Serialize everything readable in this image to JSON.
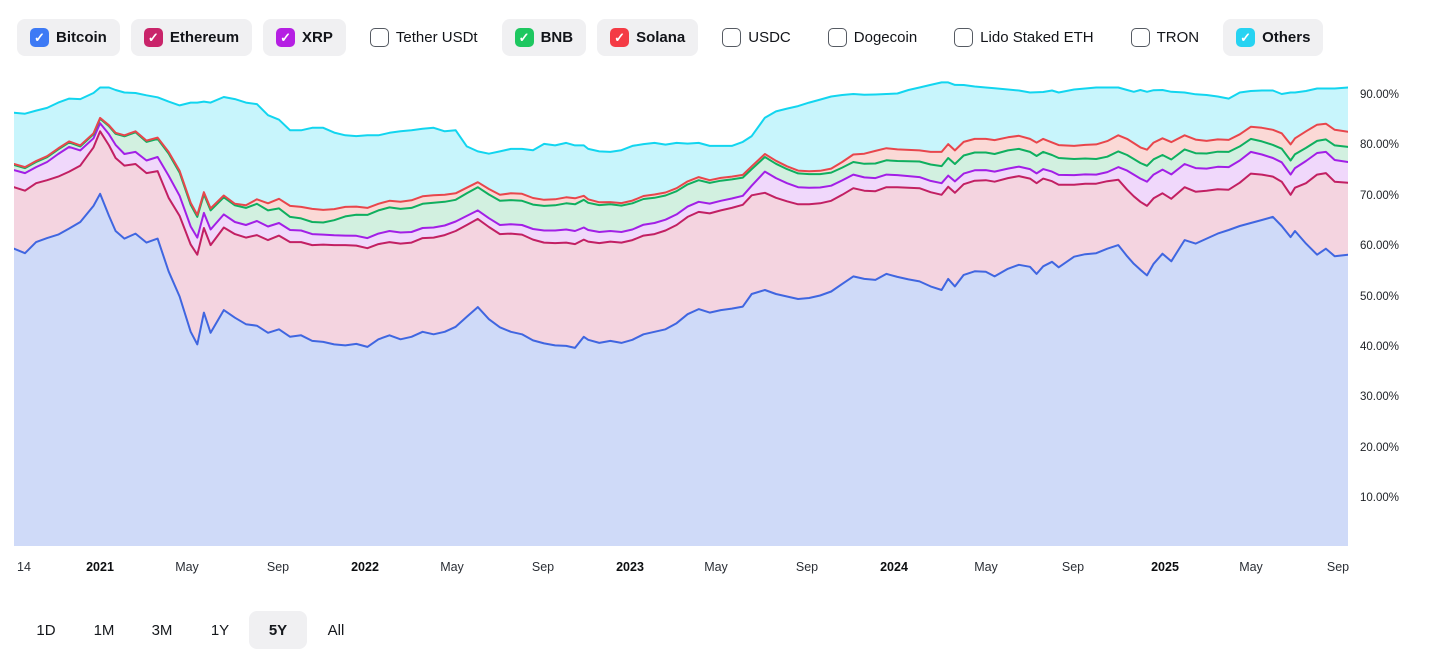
{
  "legend": {
    "items": [
      {
        "label": "Bitcoin",
        "checked": true,
        "color": "#3D7AF5"
      },
      {
        "label": "Ethereum",
        "checked": true,
        "color": "#C9246A"
      },
      {
        "label": "XRP",
        "checked": true,
        "color": "#B51FE3"
      },
      {
        "label": "Tether USDt",
        "checked": false,
        "color": null
      },
      {
        "label": "BNB",
        "checked": true,
        "color": "#1EC760"
      },
      {
        "label": "Solana",
        "checked": true,
        "color": "#F43B45"
      },
      {
        "label": "USDC",
        "checked": false,
        "color": null
      },
      {
        "label": "Dogecoin",
        "checked": false,
        "color": null
      },
      {
        "label": "Lido Staked ETH",
        "checked": false,
        "color": null
      },
      {
        "label": "TRON",
        "checked": false,
        "color": null
      },
      {
        "label": "Others",
        "checked": true,
        "color": "#26D3F2"
      }
    ]
  },
  "chart_data": {
    "type": "area",
    "stacked": true,
    "title": "Crypto market dominance share, stacked area of checked assets",
    "unit": "%",
    "ylim": [
      0,
      94.5
    ],
    "grid": false,
    "legend_position": "top",
    "x_range": {
      "start_label": "14 (Sep 2020)",
      "end_label": "Sep 2025",
      "t_max_months": 60.4
    },
    "y_ticks": [
      {
        "label": "90.00%",
        "pct": 90
      },
      {
        "label": "80.00%",
        "pct": 80
      },
      {
        "label": "70.00%",
        "pct": 70
      },
      {
        "label": "60.00%",
        "pct": 60
      },
      {
        "label": "50.00%",
        "pct": 50
      },
      {
        "label": "40.00%",
        "pct": 40
      },
      {
        "label": "30.00%",
        "pct": 30
      },
      {
        "label": "20.00%",
        "pct": 20
      },
      {
        "label": "10.00%",
        "pct": 10
      }
    ],
    "x_ticks": [
      {
        "label": "14",
        "x": 24,
        "bold": false
      },
      {
        "label": "2021",
        "x": 100,
        "bold": true
      },
      {
        "label": "May",
        "x": 187,
        "bold": false
      },
      {
        "label": "Sep",
        "x": 278,
        "bold": false
      },
      {
        "label": "2022",
        "x": 365,
        "bold": true
      },
      {
        "label": "May",
        "x": 452,
        "bold": false
      },
      {
        "label": "Sep",
        "x": 543,
        "bold": false
      },
      {
        "label": "2023",
        "x": 630,
        "bold": true
      },
      {
        "label": "May",
        "x": 716,
        "bold": false
      },
      {
        "label": "Sep",
        "x": 807,
        "bold": false
      },
      {
        "label": "2024",
        "x": 894,
        "bold": true
      },
      {
        "label": "May",
        "x": 986,
        "bold": false
      },
      {
        "label": "Sep",
        "x": 1073,
        "bold": false
      },
      {
        "label": "2025",
        "x": 1165,
        "bold": true
      },
      {
        "label": "May",
        "x": 1251,
        "bold": false
      },
      {
        "label": "Sep",
        "x": 1338,
        "bold": false
      }
    ],
    "series": [
      {
        "name": "Bitcoin",
        "line": "#4066E0",
        "fill": "#CFDAF8"
      },
      {
        "name": "Ethereum",
        "line": "#C22063",
        "fill": "#F4D4E0"
      },
      {
        "name": "XRP",
        "line": "#A21FE6",
        "fill": "#F0D8FB"
      },
      {
        "name": "BNB",
        "line": "#0FAF5F",
        "fill": "#D2F0E0"
      },
      {
        "name": "Solana",
        "line": "#E8464C",
        "fill": "#FBD9D6"
      },
      {
        "name": "Others",
        "line": "#12D5EF",
        "fill": "#C8F5FC"
      }
    ],
    "points_format": [
      "t_months_from_start",
      "Bitcoin",
      "Ethereum",
      "XRP",
      "BNB",
      "Solana",
      "Others"
    ],
    "points": [
      [
        0,
        59.5,
        12.2,
        3.4,
        1.0,
        0.2,
        10.2
      ],
      [
        0.5,
        58.6,
        12.4,
        3.5,
        1.0,
        0.2,
        10.6
      ],
      [
        1,
        60.8,
        11.7,
        3.2,
        1.0,
        0.2,
        10.0
      ],
      [
        1.5,
        61.6,
        11.5,
        3.6,
        0.95,
        0.2,
        9.6
      ],
      [
        2,
        62.3,
        11.5,
        4.5,
        0.9,
        0.2,
        9.1
      ],
      [
        2.5,
        63.5,
        11.3,
        4.9,
        0.9,
        0.2,
        8.5
      ],
      [
        3,
        64.8,
        11.2,
        3.0,
        0.8,
        0.2,
        9.2
      ],
      [
        3.6,
        68.0,
        11.6,
        1.8,
        0.8,
        0.2,
        8.0
      ],
      [
        3.9,
        70.4,
        12.4,
        1.6,
        0.9,
        0.15,
        6.05
      ],
      [
        4.3,
        66.0,
        14.0,
        2.2,
        1.6,
        0.2,
        7.5
      ],
      [
        4.6,
        63.0,
        14.5,
        2.6,
        2.2,
        0.2,
        8.5
      ],
      [
        5,
        61.5,
        14.5,
        2.3,
        3.5,
        0.2,
        8.5
      ],
      [
        5.5,
        62.5,
        13.8,
        2.4,
        3.9,
        0.2,
        7.6
      ],
      [
        6,
        60.7,
        13.8,
        2.5,
        3.7,
        0.25,
        9.0
      ],
      [
        6.5,
        61.5,
        13.4,
        2.8,
        3.6,
        0.25,
        8.0
      ],
      [
        7,
        55.0,
        14.6,
        4.4,
        4.4,
        0.3,
        10.0
      ],
      [
        7.5,
        50.0,
        16.0,
        4.0,
        4.6,
        0.35,
        13.0
      ],
      [
        8,
        43.0,
        17.3,
        3.6,
        4.3,
        0.4,
        19.9
      ],
      [
        8.3,
        40.5,
        17.8,
        3.4,
        4.1,
        0.4,
        22.3
      ],
      [
        8.6,
        46.8,
        16.8,
        3.0,
        3.7,
        0.4,
        18.0
      ],
      [
        8.9,
        42.8,
        17.4,
        3.1,
        3.8,
        0.4,
        21.0
      ],
      [
        9.5,
        47.3,
        16.4,
        2.6,
        3.4,
        0.35,
        19.55
      ],
      [
        10,
        45.8,
        16.6,
        2.4,
        3.3,
        0.3,
        20.8
      ],
      [
        10.5,
        44.5,
        17.2,
        2.5,
        3.4,
        0.5,
        20.4
      ],
      [
        11,
        44.2,
        18.0,
        2.8,
        3.4,
        0.9,
        18.9
      ],
      [
        11.5,
        42.8,
        18.4,
        2.7,
        3.2,
        1.4,
        17.5
      ],
      [
        12,
        43.5,
        18.6,
        2.5,
        2.9,
        1.9,
        15.7
      ],
      [
        12.5,
        42.0,
        18.8,
        2.4,
        2.6,
        2.2,
        15.0
      ],
      [
        13,
        42.3,
        18.5,
        2.3,
        2.4,
        2.3,
        15.2
      ],
      [
        13.5,
        41.2,
        19.0,
        2.2,
        2.4,
        2.6,
        16.1
      ],
      [
        14,
        41.0,
        19.3,
        2.0,
        2.4,
        2.5,
        16.3
      ],
      [
        14.5,
        40.5,
        19.7,
        1.95,
        3.0,
        2.2,
        15.2
      ],
      [
        15,
        40.3,
        19.9,
        1.9,
        3.8,
        1.9,
        14.2
      ],
      [
        15.5,
        40.6,
        19.5,
        1.95,
        4.2,
        1.6,
        14.0
      ],
      [
        16,
        40.0,
        19.6,
        2.0,
        4.6,
        1.4,
        14.4
      ],
      [
        16.5,
        41.5,
        18.9,
        2.1,
        4.6,
        1.3,
        13.6
      ],
      [
        17,
        42.3,
        18.5,
        2.2,
        4.7,
        1.3,
        13.5
      ],
      [
        17.5,
        41.5,
        19.0,
        2.2,
        4.7,
        1.4,
        14.0
      ],
      [
        18,
        42.0,
        18.7,
        2.1,
        4.8,
        1.5,
        13.9
      ],
      [
        18.5,
        43.0,
        18.6,
        2.0,
        4.8,
        1.5,
        13.4
      ],
      [
        19,
        42.5,
        19.2,
        2.0,
        4.9,
        1.5,
        13.4
      ],
      [
        19.5,
        43.0,
        19.2,
        1.9,
        4.7,
        1.4,
        12.6
      ],
      [
        20,
        44.0,
        19.0,
        1.9,
        4.3,
        1.3,
        12.5
      ],
      [
        20.5,
        46.0,
        18.2,
        1.8,
        4.5,
        1.1,
        8.2
      ],
      [
        21,
        47.9,
        17.5,
        1.7,
        4.6,
        1.0,
        6.1
      ],
      [
        21.5,
        45.5,
        18.3,
        1.75,
        4.7,
        1.1,
        7.0
      ],
      [
        22,
        43.9,
        18.5,
        1.8,
        4.8,
        1.2,
        8.6
      ],
      [
        22.5,
        43.0,
        19.5,
        1.85,
        4.8,
        1.35,
        8.8
      ],
      [
        23,
        42.5,
        19.8,
        1.9,
        4.8,
        1.4,
        8.9
      ],
      [
        23.5,
        41.3,
        20.0,
        2.1,
        4.85,
        1.3,
        9.5
      ],
      [
        24,
        40.7,
        20.0,
        2.4,
        4.9,
        1.2,
        11.1
      ],
      [
        24.5,
        40.3,
        20.3,
        2.5,
        5.0,
        1.2,
        10.7
      ],
      [
        25,
        40.2,
        20.5,
        2.6,
        5.2,
        1.2,
        10.8
      ],
      [
        25.4,
        39.8,
        20.6,
        2.6,
        5.3,
        1.2,
        10.5
      ],
      [
        25.8,
        42.0,
        19.3,
        2.4,
        5.5,
        0.8,
        10.0
      ],
      [
        26,
        41.4,
        19.5,
        2.3,
        5.4,
        0.7,
        10.0
      ],
      [
        26.5,
        40.8,
        19.8,
        2.2,
        5.35,
        0.55,
        10.1
      ],
      [
        27,
        41.2,
        19.7,
        2.1,
        5.3,
        0.45,
        9.95
      ],
      [
        27.5,
        40.8,
        19.9,
        2.1,
        5.25,
        0.5,
        10.5
      ],
      [
        28,
        41.4,
        19.8,
        2.1,
        5.2,
        0.55,
        10.85
      ],
      [
        28.5,
        42.5,
        19.6,
        2.15,
        5.1,
        0.6,
        10.3
      ],
      [
        29,
        43.0,
        19.4,
        2.2,
        5.0,
        0.65,
        10.25
      ],
      [
        29.5,
        43.5,
        19.6,
        2.15,
        4.8,
        0.6,
        9.5
      ],
      [
        30,
        44.7,
        19.5,
        2.1,
        4.6,
        0.6,
        9.0
      ],
      [
        30.5,
        46.5,
        19.3,
        2.05,
        4.4,
        0.6,
        7.5
      ],
      [
        31,
        47.5,
        19.3,
        2.0,
        4.3,
        0.6,
        6.8
      ],
      [
        31.5,
        46.8,
        19.7,
        1.95,
        4.1,
        0.55,
        6.8
      ],
      [
        32,
        47.3,
        19.8,
        1.9,
        4.0,
        0.55,
        6.35
      ],
      [
        32.5,
        47.6,
        20.0,
        1.85,
        3.8,
        0.55,
        6.1
      ],
      [
        33,
        48.0,
        20.2,
        1.8,
        3.6,
        0.55,
        6.55
      ],
      [
        33.4,
        50.5,
        19.6,
        1.9,
        3.3,
        0.55,
        6.0
      ],
      [
        34,
        51.3,
        19.3,
        4.2,
        2.9,
        0.6,
        7.2
      ],
      [
        34.5,
        50.5,
        19.1,
        3.9,
        2.85,
        0.6,
        9.8
      ],
      [
        35,
        50.0,
        18.9,
        3.6,
        2.8,
        0.55,
        11.45
      ],
      [
        35.5,
        49.5,
        18.8,
        3.4,
        2.75,
        0.55,
        12.8
      ],
      [
        36,
        49.7,
        18.6,
        3.3,
        2.7,
        0.55,
        13.65
      ],
      [
        36.5,
        50.2,
        18.3,
        3.15,
        2.65,
        0.65,
        14.15
      ],
      [
        37,
        51.0,
        18.0,
        3.0,
        2.6,
        0.8,
        14.3
      ],
      [
        37.5,
        52.5,
        17.7,
        2.85,
        2.55,
        1.1,
        13.3
      ],
      [
        38,
        54.0,
        17.5,
        2.7,
        2.5,
        1.5,
        12.0
      ],
      [
        38.5,
        53.5,
        17.5,
        2.65,
        2.7,
        2.0,
        11.7
      ],
      [
        39,
        53.3,
        17.6,
        2.6,
        2.9,
        2.5,
        11.2
      ],
      [
        39.5,
        54.5,
        17.2,
        2.5,
        2.85,
        2.4,
        10.75
      ],
      [
        40,
        53.9,
        17.8,
        2.4,
        2.8,
        2.3,
        11.1
      ],
      [
        40.5,
        53.4,
        18.2,
        2.3,
        2.95,
        2.25,
        11.9
      ],
      [
        41,
        53.0,
        18.5,
        2.2,
        3.1,
        2.2,
        12.5
      ],
      [
        41.5,
        52.0,
        18.7,
        2.25,
        3.25,
        2.5,
        13.3
      ],
      [
        42,
        51.3,
        18.9,
        2.3,
        3.4,
        2.8,
        13.8
      ],
      [
        42.3,
        53.5,
        18.3,
        2.2,
        3.5,
        2.75,
        12.25
      ],
      [
        42.6,
        52.0,
        18.6,
        2.25,
        3.45,
        2.7,
        13.0
      ],
      [
        43,
        54.3,
        18.0,
        2.1,
        3.6,
        2.7,
        11.3
      ],
      [
        43.5,
        55.0,
        18.0,
        2.05,
        3.55,
        2.7,
        10.4
      ],
      [
        44,
        54.9,
        18.2,
        2.0,
        3.5,
        2.7,
        10.2
      ],
      [
        44.4,
        54.0,
        18.8,
        2.0,
        3.5,
        2.75,
        10.3
      ],
      [
        45,
        55.5,
        18.0,
        1.9,
        3.6,
        2.6,
        9.5
      ],
      [
        45.5,
        56.3,
        17.6,
        1.9,
        3.5,
        2.6,
        9.0
      ],
      [
        46,
        55.9,
        17.5,
        1.9,
        3.4,
        2.6,
        9.2
      ],
      [
        46.3,
        54.5,
        18.0,
        1.95,
        3.45,
        2.65,
        10.0
      ],
      [
        46.6,
        56.0,
        17.4,
        1.9,
        3.4,
        2.6,
        9.3
      ],
      [
        47,
        56.9,
        16.0,
        1.9,
        3.3,
        2.5,
        10.3
      ],
      [
        47.3,
        55.8,
        16.4,
        1.95,
        3.35,
        2.55,
        10.45
      ],
      [
        48,
        57.9,
        14.3,
        1.9,
        3.2,
        2.6,
        11.2
      ],
      [
        48.5,
        58.4,
        14.0,
        1.85,
        3.15,
        2.7,
        11.2
      ],
      [
        49,
        58.6,
        13.8,
        1.8,
        3.1,
        2.9,
        11.3
      ],
      [
        49.5,
        59.5,
        13.4,
        1.8,
        3.05,
        3.1,
        10.65
      ],
      [
        50,
        60.2,
        13.0,
        2.5,
        3.1,
        3.2,
        9.5
      ],
      [
        50.4,
        58.0,
        13.2,
        3.8,
        3.1,
        3.2,
        9.7
      ],
      [
        50.7,
        56.5,
        13.4,
        4.3,
        3.1,
        3.15,
        10.2
      ],
      [
        51,
        55.3,
        13.5,
        4.6,
        3.1,
        3.1,
        11.4
      ],
      [
        51.3,
        54.2,
        13.8,
        4.8,
        3.15,
        3.2,
        11.5
      ],
      [
        51.6,
        56.5,
        13.0,
        4.7,
        3.05,
        3.3,
        10.4
      ],
      [
        52,
        58.5,
        12.0,
        4.7,
        2.9,
        3.3,
        9.6
      ],
      [
        52.4,
        57.0,
        12.4,
        4.85,
        2.95,
        3.45,
        10.0
      ],
      [
        53,
        61.2,
        10.5,
        4.6,
        2.9,
        2.8,
        8.5
      ],
      [
        53.5,
        60.5,
        10.3,
        4.7,
        2.95,
        2.7,
        9.0
      ],
      [
        54,
        61.5,
        9.5,
        4.4,
        3.0,
        2.5,
        9.1
      ],
      [
        54.5,
        62.5,
        8.8,
        4.45,
        3.0,
        2.45,
        8.5
      ],
      [
        55,
        63.2,
        8.0,
        4.5,
        3.0,
        2.4,
        8.2
      ],
      [
        55.5,
        64.0,
        8.6,
        4.4,
        2.8,
        2.4,
        8.3
      ],
      [
        56,
        64.6,
        9.8,
        4.3,
        2.6,
        2.4,
        7.1
      ],
      [
        56.5,
        65.2,
        9.0,
        4.0,
        2.6,
        2.7,
        7.4
      ],
      [
        57,
        65.8,
        8.0,
        3.7,
        2.6,
        3.0,
        7.8
      ],
      [
        57.4,
        64.0,
        8.8,
        3.85,
        2.7,
        3.05,
        7.8
      ],
      [
        57.8,
        61.8,
        8.4,
        4.0,
        2.8,
        3.2,
        10.3
      ],
      [
        58,
        63.0,
        8.6,
        3.9,
        2.75,
        3.15,
        9.1
      ],
      [
        58.5,
        60.5,
        12.0,
        4.4,
        2.6,
        3.3,
        8.0
      ],
      [
        59,
        58.3,
        15.9,
        4.3,
        2.4,
        3.2,
        7.2
      ],
      [
        59.4,
        59.5,
        15.0,
        4.2,
        2.5,
        3.1,
        7.0
      ],
      [
        59.8,
        58.0,
        14.8,
        4.3,
        2.9,
        3.1,
        8.2
      ],
      [
        60.4,
        58.3,
        14.3,
        4.1,
        3.0,
        3.0,
        8.8
      ]
    ]
  },
  "range_buttons": {
    "options": [
      "1D",
      "1M",
      "3M",
      "1Y",
      "5Y",
      "All"
    ],
    "selected": "5Y"
  }
}
